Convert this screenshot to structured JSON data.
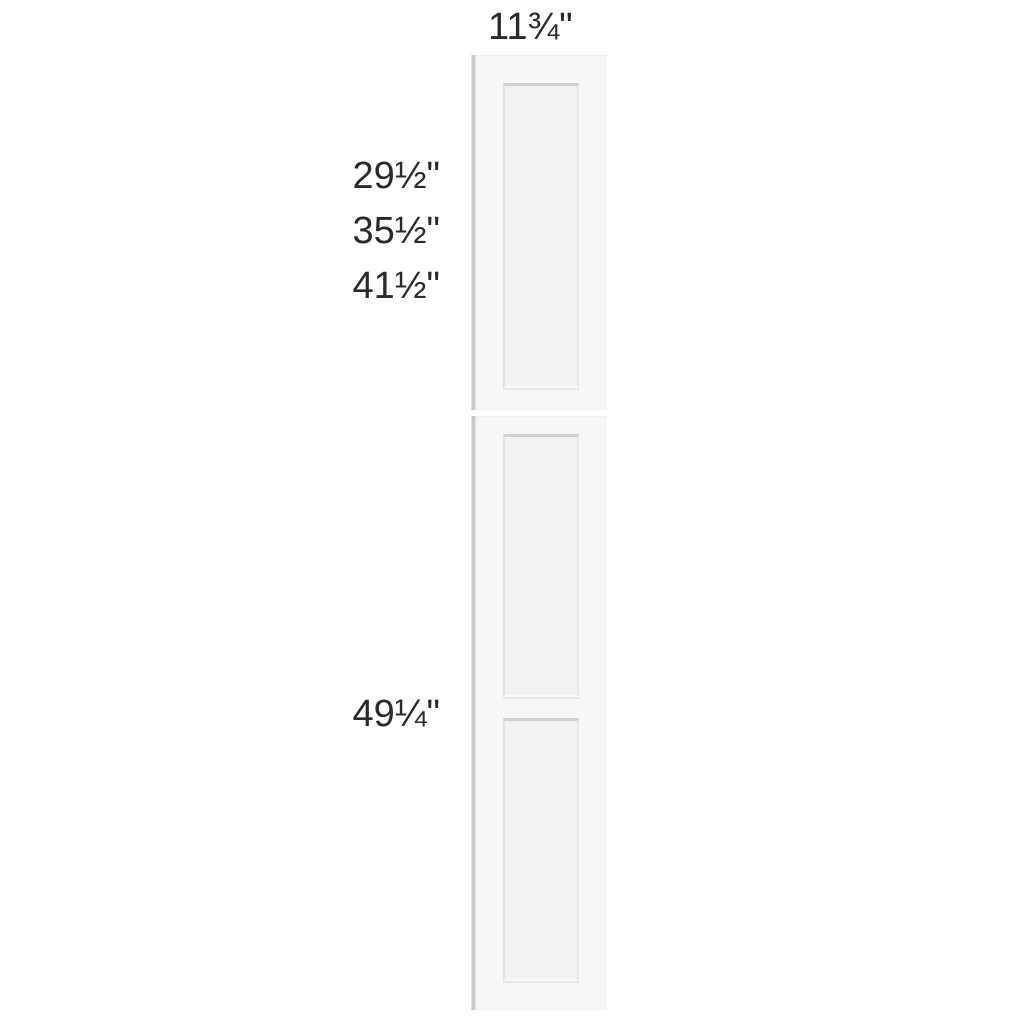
{
  "dimensions": {
    "width": "11¾\"",
    "heights": [
      "29½\"",
      "35½\"",
      "41½\""
    ],
    "bottom_height": "49¼\""
  },
  "colors": {
    "door": "#f7f7f8",
    "text": "#2a2a2a"
  }
}
